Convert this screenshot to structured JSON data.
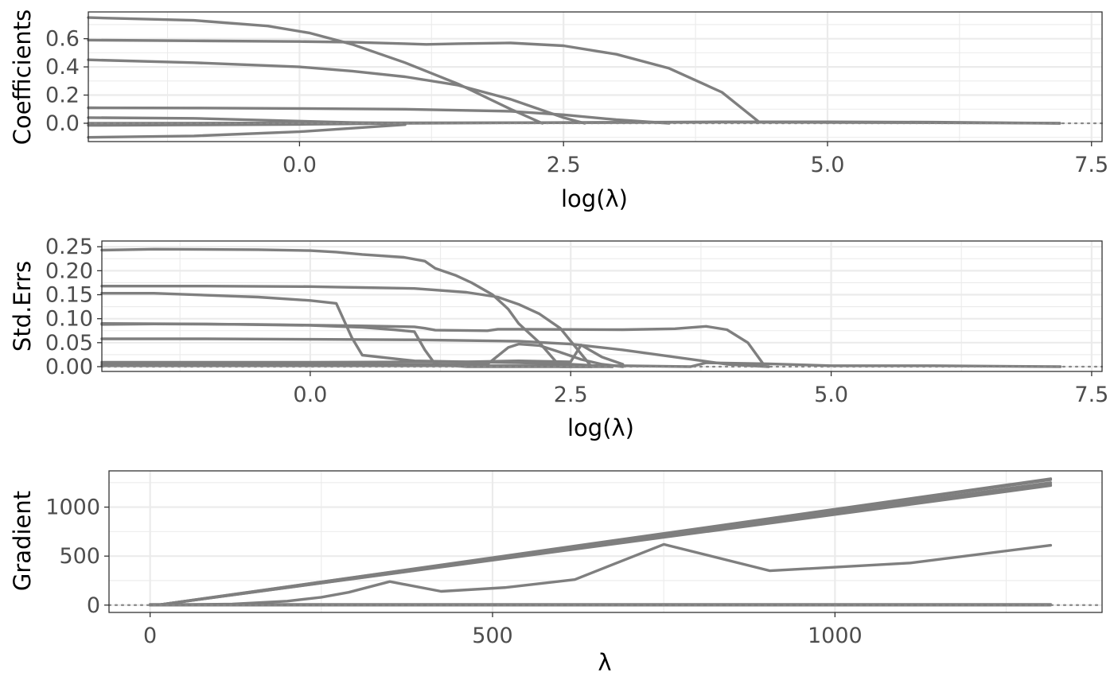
{
  "colors": {
    "series": "#7f7f7f",
    "grid": "#ebebeb",
    "zero_line": "#888888",
    "border": "#333333"
  },
  "chart_data": [
    {
      "type": "line",
      "xlabel": "log(λ)",
      "ylabel": "Coefficients",
      "xlim": [
        -2.0,
        7.6
      ],
      "ylim": [
        -0.13,
        0.79
      ],
      "grid": true,
      "legend": "none",
      "reference_line_y": 0,
      "x_ticks": [
        0.0,
        2.5,
        5.0,
        7.5
      ],
      "x_tick_labels": [
        "0.0",
        "2.5",
        "5.0",
        "7.5"
      ],
      "y_ticks": [
        0.0,
        0.2,
        0.4,
        0.6
      ],
      "y_tick_labels": [
        "0.0",
        "0.2",
        "0.4",
        "0.6"
      ],
      "series": [
        {
          "x": [
            -2.0,
            -1.0,
            -0.3,
            0.1,
            0.5,
            1.0,
            1.5,
            2.0,
            2.3
          ],
          "y": [
            0.75,
            0.73,
            0.69,
            0.64,
            0.56,
            0.43,
            0.28,
            0.1,
            0.0
          ]
        },
        {
          "x": [
            -2.0,
            -1.0,
            0.0,
            0.5,
            1.0,
            1.2,
            1.5,
            2.0,
            2.5,
            3.0,
            3.5,
            4.0,
            4.35
          ],
          "y": [
            0.59,
            0.585,
            0.58,
            0.575,
            0.565,
            0.56,
            0.565,
            0.57,
            0.55,
            0.49,
            0.39,
            0.22,
            0.01
          ]
        },
        {
          "x": [
            -2.0,
            -1.0,
            0.0,
            0.5,
            1.0,
            1.5,
            2.0,
            2.5,
            2.7
          ],
          "y": [
            0.45,
            0.43,
            0.4,
            0.37,
            0.33,
            0.27,
            0.17,
            0.04,
            0.0
          ]
        },
        {
          "x": [
            -2.0,
            -1.0,
            0.0,
            1.0,
            2.0,
            2.5,
            3.0,
            3.5
          ],
          "y": [
            0.11,
            0.108,
            0.105,
            0.1,
            0.085,
            0.06,
            0.025,
            0.0
          ]
        },
        {
          "x": [
            -2.0,
            -1.0,
            0.0,
            0.5,
            1.0
          ],
          "y": [
            0.04,
            0.035,
            0.015,
            0.005,
            0.0
          ]
        },
        {
          "x": [
            -2.0,
            -1.0,
            0.0,
            0.5,
            1.0
          ],
          "y": [
            -0.015,
            -0.012,
            -0.008,
            -0.004,
            0.0
          ]
        },
        {
          "x": [
            -2.0,
            -1.0,
            0.0,
            0.5,
            1.0
          ],
          "y": [
            -0.1,
            -0.09,
            -0.06,
            -0.035,
            -0.01
          ]
        },
        {
          "x": [
            -2.0,
            0.0,
            2.0,
            4.0,
            5.0,
            6.0,
            7.2
          ],
          "y": [
            0.0,
            0.002,
            0.004,
            0.01,
            0.01,
            0.008,
            0.0
          ]
        },
        {
          "x": [
            1.0,
            2.0,
            3.0,
            4.0,
            5.0,
            6.0,
            7.2
          ],
          "y": [
            0.0,
            0.003,
            0.005,
            0.008,
            0.006,
            0.004,
            0.0
          ]
        }
      ]
    },
    {
      "type": "line",
      "xlabel": "log(λ)",
      "ylabel": "Std.Errs",
      "xlim": [
        -2.0,
        7.6
      ],
      "ylim": [
        -0.01,
        0.262
      ],
      "grid": true,
      "legend": "none",
      "reference_line_y": 0,
      "x_ticks": [
        0.0,
        2.5,
        5.0,
        7.5
      ],
      "x_tick_labels": [
        "0.0",
        "2.5",
        "5.0",
        "7.5"
      ],
      "y_ticks": [
        0.0,
        0.05,
        0.1,
        0.15,
        0.2,
        0.25
      ],
      "y_tick_labels": [
        "0.00",
        "0.05",
        "0.10",
        "0.15",
        "0.20",
        "0.25"
      ],
      "series": [
        {
          "x": [
            -2.0,
            -1.5,
            -0.5,
            0.0,
            0.25,
            0.5,
            0.9,
            1.1,
            1.2,
            1.4,
            1.55,
            1.75,
            1.9,
            2.0,
            2.2,
            2.4,
            2.7
          ],
          "y": [
            0.243,
            0.245,
            0.244,
            0.242,
            0.239,
            0.234,
            0.228,
            0.22,
            0.205,
            0.19,
            0.175,
            0.15,
            0.12,
            0.09,
            0.05,
            0.0,
            0.0
          ]
        },
        {
          "x": [
            -2.0,
            -1.0,
            0.0,
            0.25,
            0.5,
            1.0,
            1.5,
            1.8,
            2.0,
            2.2,
            2.4,
            2.7
          ],
          "y": [
            0.168,
            0.168,
            0.167,
            0.166,
            0.165,
            0.163,
            0.155,
            0.145,
            0.13,
            0.11,
            0.08,
            0.0
          ]
        },
        {
          "x": [
            -2.0,
            -1.5,
            -0.5,
            0.0,
            0.25,
            0.4,
            0.5,
            1.0,
            1.5,
            2.0,
            2.5,
            2.9
          ],
          "y": [
            0.153,
            0.153,
            0.145,
            0.138,
            0.132,
            0.06,
            0.024,
            0.012,
            0.01,
            0.008,
            0.005,
            0.0
          ]
        },
        {
          "x": [
            -2.0,
            -1.5,
            -0.5,
            0.5,
            1.0,
            1.1,
            1.2,
            1.7,
            1.8,
            2.0,
            3.0,
            3.5,
            3.8,
            4.0,
            4.2,
            4.35
          ],
          "y": [
            0.088,
            0.089,
            0.088,
            0.085,
            0.083,
            0.08,
            0.076,
            0.075,
            0.078,
            0.078,
            0.077,
            0.079,
            0.084,
            0.077,
            0.05,
            0.005
          ]
        },
        {
          "x": [
            -2.0,
            -1.0,
            0.0,
            0.5,
            0.8,
            1.0,
            1.1,
            1.2,
            1.5,
            2.0,
            2.5,
            2.9
          ],
          "y": [
            0.09,
            0.089,
            0.086,
            0.082,
            0.077,
            0.073,
            0.035,
            0.005,
            0.0,
            0.0,
            0.0,
            0.0
          ]
        },
        {
          "x": [
            -2.0,
            -1.0,
            0.0,
            1.0,
            2.0,
            2.5,
            3.0,
            3.5,
            4.0,
            4.4
          ],
          "y": [
            0.058,
            0.058,
            0.057,
            0.056,
            0.053,
            0.047,
            0.035,
            0.02,
            0.005,
            0.0
          ]
        },
        {
          "x": [
            -2.0,
            0.0,
            1.0,
            1.7,
            1.9,
            2.0,
            2.2,
            2.4,
            2.6,
            2.8,
            3.0
          ],
          "y": [
            0.005,
            0.005,
            0.004,
            0.005,
            0.04,
            0.047,
            0.044,
            0.03,
            0.015,
            0.005,
            0.0
          ]
        },
        {
          "x": [
            -2.0,
            0.0,
            1.5,
            2.0,
            2.5,
            2.6,
            2.8,
            3.0
          ],
          "y": [
            0.009,
            0.009,
            0.01,
            0.012,
            0.01,
            0.045,
            0.02,
            0.005
          ]
        },
        {
          "x": [
            -2.0,
            0.0,
            2.0,
            3.0,
            3.65,
            3.8,
            4.4,
            5.0,
            6.0,
            7.2
          ],
          "y": [
            0.002,
            0.002,
            0.002,
            0.002,
            0.0,
            0.008,
            0.006,
            0.002,
            0.002,
            0.0
          ]
        }
      ]
    },
    {
      "type": "line",
      "xlabel": "λ",
      "ylabel": "Gradient",
      "xlim": [
        -60,
        1390
      ],
      "ylim": [
        -75,
        1370
      ],
      "grid": true,
      "legend": "none",
      "reference_line_y": 0,
      "x_ticks": [
        0,
        500,
        1000
      ],
      "x_tick_labels": [
        "0",
        "500",
        "1000"
      ],
      "y_ticks": [
        0,
        500,
        1000
      ],
      "y_tick_labels": [
        "0",
        "500",
        "1000"
      ],
      "series": [
        {
          "x": [
            10,
            1315
          ],
          "y": [
            0,
            1290
          ]
        },
        {
          "x": [
            10,
            1315
          ],
          "y": [
            0,
            1280
          ]
        },
        {
          "x": [
            10,
            1315
          ],
          "y": [
            0,
            1250
          ]
        },
        {
          "x": [
            10,
            1315
          ],
          "y": [
            0,
            1230
          ]
        },
        {
          "x": [
            10,
            1315
          ],
          "y": [
            0,
            1220
          ]
        },
        {
          "x": [
            0,
            120,
            200,
            250,
            290,
            350,
            425,
            520,
            620,
            750,
            905,
            1110,
            1315
          ],
          "y": [
            0,
            10,
            40,
            80,
            130,
            240,
            140,
            180,
            260,
            620,
            350,
            430,
            610
          ]
        },
        {
          "x": [
            0,
            1315
          ],
          "y": [
            0,
            0
          ]
        },
        {
          "x": [
            0,
            1315
          ],
          "y": [
            3,
            3
          ]
        },
        {
          "x": [
            0,
            1315
          ],
          "y": [
            6,
            6
          ]
        }
      ]
    }
  ]
}
